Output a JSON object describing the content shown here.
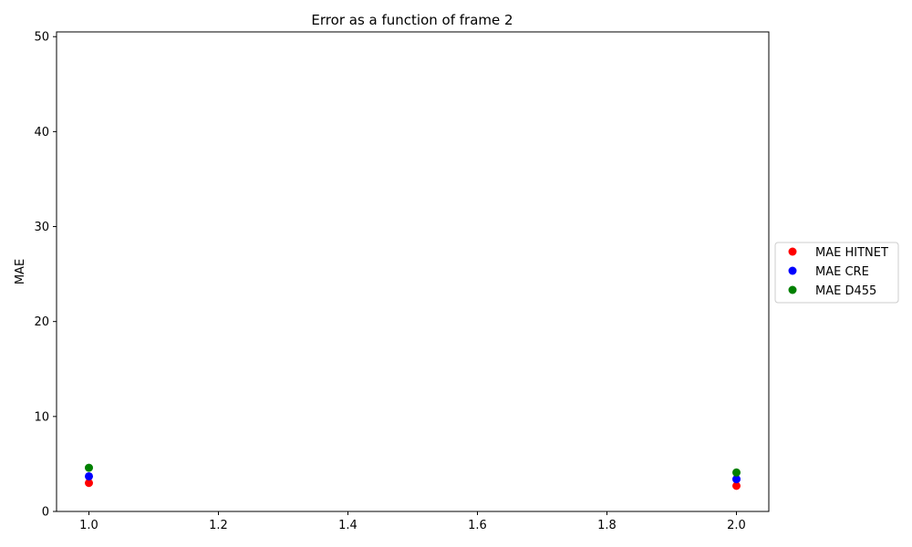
{
  "chart_data": {
    "type": "scatter",
    "title": "Error as a function of frame 2",
    "xlabel": "",
    "ylabel": "MAE",
    "xlim": [
      0.95,
      2.05
    ],
    "ylim": [
      0,
      50.5
    ],
    "x_ticks": [
      1.0,
      1.2,
      1.4,
      1.6,
      1.8,
      2.0
    ],
    "x_tick_labels": [
      "1.0",
      "1.2",
      "1.4",
      "1.6",
      "1.8",
      "2.0"
    ],
    "y_ticks": [
      0,
      10,
      20,
      30,
      40,
      50
    ],
    "y_tick_labels": [
      "0",
      "10",
      "20",
      "30",
      "40",
      "50"
    ],
    "grid": false,
    "legend_position": "center-right-outside",
    "series": [
      {
        "name": "MAE HITNET",
        "color": "#ff0000",
        "x": [
          1.0,
          2.0
        ],
        "y": [
          3.0,
          2.7
        ]
      },
      {
        "name": "MAE CRE",
        "color": "#0000ff",
        "x": [
          1.0,
          2.0
        ],
        "y": [
          3.7,
          3.4
        ]
      },
      {
        "name": "MAE D455",
        "color": "#008000",
        "x": [
          1.0,
          2.0
        ],
        "y": [
          4.6,
          4.1
        ]
      }
    ]
  }
}
